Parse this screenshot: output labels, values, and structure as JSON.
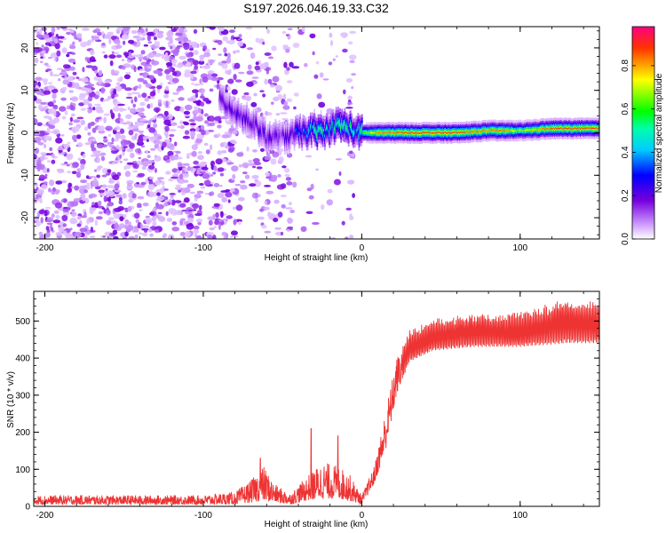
{
  "title": "S197.2026.046.19.33.C32",
  "chart_data": [
    {
      "type": "heatmap",
      "xlabel": "Height of straight line (km)",
      "ylabel": "Frequency (Hz)",
      "xlim": [
        -207,
        150
      ],
      "ylim": [
        -25,
        25
      ],
      "x_ticks": [
        -200,
        -100,
        0,
        100
      ],
      "x_tick_labels": [
        "-200",
        "-100",
        "0",
        "100"
      ],
      "y_ticks": [
        -20,
        -10,
        0,
        10,
        20
      ],
      "y_tick_labels": [
        "-20",
        "-10",
        "0",
        "10",
        "20"
      ],
      "colorbar": {
        "label": "Normalized spectral amplitude",
        "range": [
          0,
          0.98
        ],
        "ticks": [
          0,
          0.2,
          0.4,
          0.6,
          0.8
        ],
        "tick_labels": [
          "0.0",
          "0.2",
          "0.4",
          "0.6",
          "0.8"
        ],
        "colors": [
          "#ffffff",
          "#7700dd",
          "#0000ff",
          "#00ffff",
          "#00ff00",
          "#ffff00",
          "#ff0000",
          "#ff0080"
        ]
      },
      "ridge": [
        {
          "x": -90,
          "freq": 8,
          "amp": 0.2
        },
        {
          "x": -80,
          "freq": 5,
          "amp": 0.25
        },
        {
          "x": -72,
          "freq": 3,
          "amp": 0.25
        },
        {
          "x": -65,
          "freq": 1,
          "amp": 0.22
        },
        {
          "x": -60,
          "freq": -1,
          "amp": 0.25
        },
        {
          "x": -50,
          "freq": -1,
          "amp": 0.2
        },
        {
          "x": -40,
          "freq": 0,
          "amp": 0.35
        },
        {
          "x": -30,
          "freq": 0.5,
          "amp": 0.6
        },
        {
          "x": -25,
          "freq": 0,
          "amp": 0.65
        },
        {
          "x": -20,
          "freq": 1,
          "amp": 0.5
        },
        {
          "x": -15,
          "freq": 2,
          "amp": 0.6
        },
        {
          "x": -10,
          "freq": 1.5,
          "amp": 0.65
        },
        {
          "x": -5,
          "freq": 0.5,
          "amp": 0.5
        },
        {
          "x": 0,
          "freq": 0,
          "amp": 0.6
        },
        {
          "x": 10,
          "freq": 0,
          "amp": 0.85
        },
        {
          "x": 30,
          "freq": 0,
          "amp": 0.92
        },
        {
          "x": 60,
          "freq": 0,
          "amp": 0.92
        },
        {
          "x": 80,
          "freq": 0.5,
          "amp": 0.85
        },
        {
          "x": 90,
          "freq": 0.5,
          "amp": 0.88
        },
        {
          "x": 100,
          "freq": 0.5,
          "amp": 0.7
        },
        {
          "x": 120,
          "freq": 1,
          "amp": 0.92
        },
        {
          "x": 150,
          "freq": 1,
          "amp": 0.92
        }
      ]
    },
    {
      "type": "line",
      "xlabel": "Height of straight line (km)",
      "ylabel": "SNR (10 * v/v)",
      "xlim": [
        -207,
        150
      ],
      "ylim": [
        0,
        580
      ],
      "x_ticks": [
        -200,
        -100,
        0,
        100
      ],
      "x_tick_labels": [
        "-200",
        "-100",
        "0",
        "100"
      ],
      "y_ticks": [
        0,
        100,
        200,
        300,
        400,
        500
      ],
      "y_tick_labels": [
        "0",
        "100",
        "200",
        "300",
        "400",
        "500"
      ],
      "series": [
        {
          "name": "SNR",
          "color": "#ee3333",
          "envelope": [
            {
              "x": -207,
              "lo": 5,
              "hi": 30
            },
            {
              "x": -100,
              "lo": 5,
              "hi": 30
            },
            {
              "x": -80,
              "lo": 5,
              "hi": 40
            },
            {
              "x": -70,
              "lo": 10,
              "hi": 70
            },
            {
              "x": -62,
              "lo": 15,
              "hi": 110
            },
            {
              "x": -55,
              "lo": 10,
              "hi": 60
            },
            {
              "x": -45,
              "lo": 5,
              "hi": 35
            },
            {
              "x": -35,
              "lo": 15,
              "hi": 80
            },
            {
              "x": -25,
              "lo": 20,
              "hi": 120
            },
            {
              "x": -15,
              "lo": 20,
              "hi": 110
            },
            {
              "x": -8,
              "lo": 15,
              "hi": 90
            },
            {
              "x": 0,
              "lo": 5,
              "hi": 30
            },
            {
              "x": 8,
              "lo": 60,
              "hi": 110
            },
            {
              "x": 15,
              "lo": 150,
              "hi": 260
            },
            {
              "x": 22,
              "lo": 300,
              "hi": 400
            },
            {
              "x": 30,
              "lo": 390,
              "hi": 480
            },
            {
              "x": 45,
              "lo": 420,
              "hi": 510
            },
            {
              "x": 70,
              "lo": 430,
              "hi": 520
            },
            {
              "x": 100,
              "lo": 430,
              "hi": 530
            },
            {
              "x": 130,
              "lo": 440,
              "hi": 560
            },
            {
              "x": 150,
              "lo": 440,
              "hi": 560
            }
          ],
          "spikes": [
            {
              "x": -32,
              "y": 210
            },
            {
              "x": -15,
              "y": 190
            },
            {
              "x": -64,
              "y": 130
            }
          ]
        }
      ]
    }
  ]
}
